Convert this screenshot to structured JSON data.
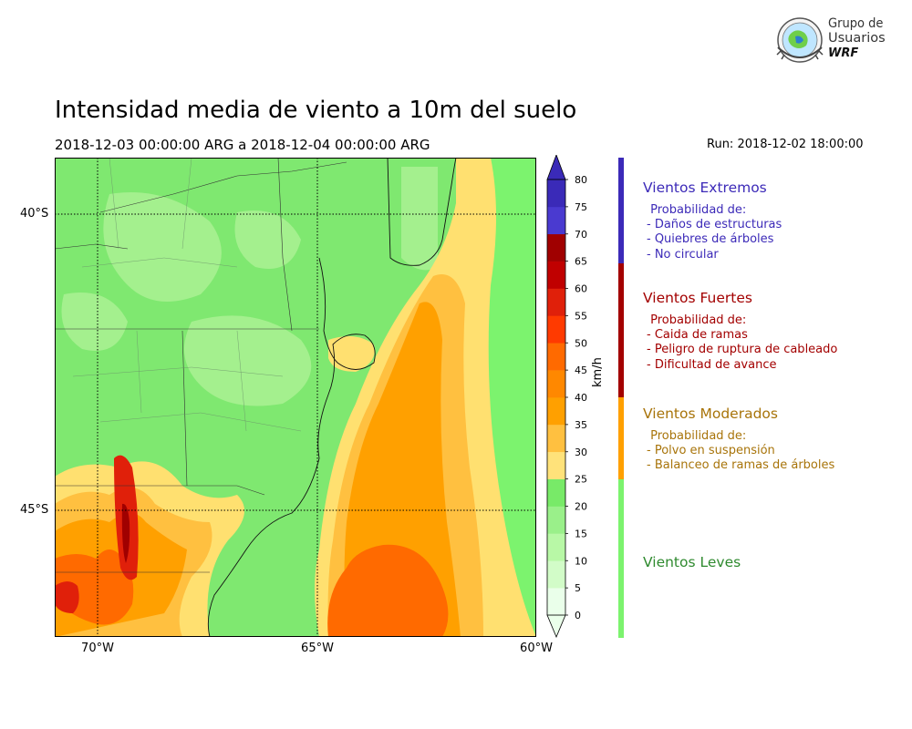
{
  "header": {
    "title": "Intensidad media de viento a 10m del suelo",
    "subtitle": "2018-12-03 00:00:00 ARG  a  2018-12-04 00:00:00 ARG",
    "run": "Run: 2018-12-02 18:00:00"
  },
  "logo": {
    "line1": "Grupo de",
    "line2": "Usuarios",
    "line3": "WRF"
  },
  "map": {
    "lat_labels": [
      "40°S",
      "45°S"
    ],
    "lon_labels": [
      "70°W",
      "65°W",
      "60°W"
    ],
    "colors": {
      "ocean_far": "#7cf36e",
      "ocean_mid": "#a6f097",
      "yellow": "#ffe070",
      "light_orange": "#ffc040",
      "orange": "#ffa000",
      "dark_orange": "#ff6a00",
      "land": "#7fe870",
      "land_light": "#a4f08e",
      "red": "#e0200a",
      "dark_red": "#a00000"
    }
  },
  "colorbar": {
    "unit": "km/h",
    "ticks": [
      "0",
      "5",
      "10",
      "15",
      "20",
      "25",
      "30",
      "35",
      "40",
      "45",
      "50",
      "55",
      "60",
      "65",
      "70",
      "75",
      "80"
    ],
    "colors": [
      "#eaffea",
      "#d2fcc8",
      "#b8f8a6",
      "#9af08a",
      "#78ea68",
      "#ffe27a",
      "#ffc040",
      "#ffa000",
      "#ff8800",
      "#ff6a00",
      "#ff3a00",
      "#e0200a",
      "#c00000",
      "#a00000",
      "#6a5ae0",
      "#4a3ad0",
      "#3a2ab8"
    ]
  },
  "categories": [
    {
      "title": "Vientos Extremos",
      "color": "#3c2ab8",
      "lines": [
        " Probabilidad de:",
        "- Daños de estructuras",
        "- Quiebres de árboles",
        "- No circular"
      ]
    },
    {
      "title": "Vientos Fuertes",
      "color": "#a30000",
      "lines": [
        " Probabilidad de:",
        "- Caida de ramas",
        "- Peligro de ruptura de cableado",
        "- Dificultad de avance"
      ]
    },
    {
      "title": "Vientos Moderados",
      "color": "#a8740a",
      "lines": [
        " Probabilidad de:",
        "- Polvo en suspensión",
        "- Balanceo de ramas de árboles"
      ]
    },
    {
      "title": "Vientos Leves",
      "color": "#2f8a2f",
      "lines": []
    }
  ],
  "category_bar_colors": [
    "#3c2ab8",
    "#a30000",
    "#ffa000",
    "#7cf36e"
  ]
}
